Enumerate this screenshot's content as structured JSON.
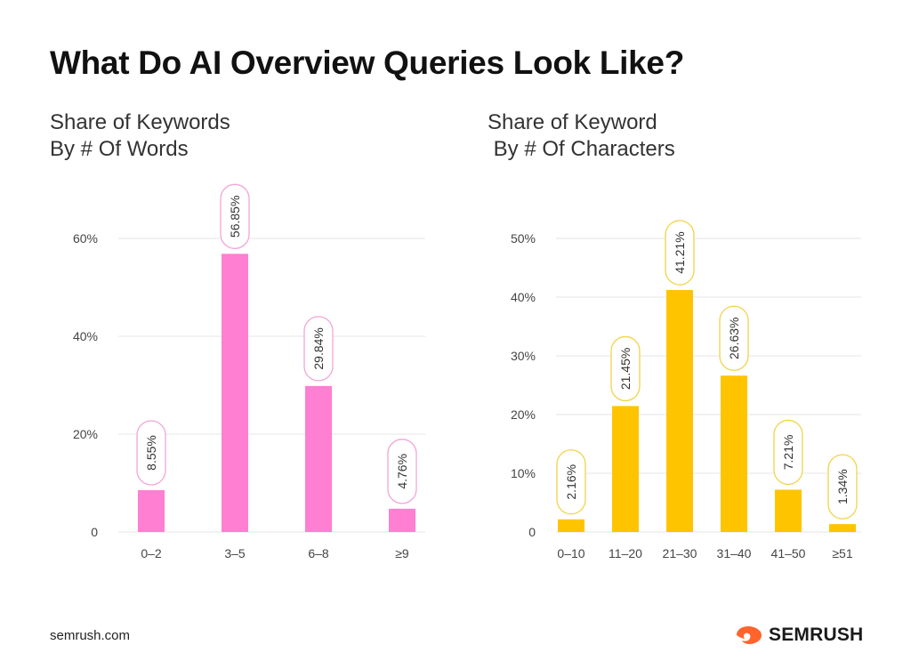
{
  "title": "What Do AI Overview Queries Look Like?",
  "footer": {
    "url": "semrush.com",
    "brand": "SEMRUSH",
    "brand_icon": "semrush-fire-icon",
    "brand_color": "#ff642d"
  },
  "chart_data": [
    {
      "type": "bar",
      "title": "Share of Keywords\nBy # Of Words",
      "categories": [
        "0–2",
        "3–5",
        "6–8",
        "≥9"
      ],
      "values": [
        8.55,
        56.85,
        29.84,
        4.76
      ],
      "data_labels": [
        "8.55%",
        "56.85%",
        "29.84%",
        "4.76%"
      ],
      "yticks": [
        "0",
        "20%",
        "40%",
        "60%"
      ],
      "ytick_values": [
        0,
        20,
        40,
        60
      ],
      "ylim": [
        0,
        60
      ],
      "color": "#ff7fd2",
      "label_border": "#f0a6d8",
      "grid": true
    },
    {
      "type": "bar",
      "title": "Share of Keyword\n By # Of Characters",
      "categories": [
        "0–10",
        "11–20",
        "21–30",
        "31–40",
        "41–50",
        "≥51"
      ],
      "values": [
        2.16,
        21.45,
        41.21,
        26.63,
        7.21,
        1.34
      ],
      "data_labels": [
        "2.16%",
        "21.45%",
        "41.21%",
        "26.63%",
        "7.21%",
        "1.34%"
      ],
      "yticks": [
        "0",
        "10%",
        "20%",
        "30%",
        "40%",
        "50%"
      ],
      "ytick_values": [
        0,
        10,
        20,
        30,
        40,
        50
      ],
      "ylim": [
        0,
        50
      ],
      "color": "#ffc400",
      "label_border": "#f2d34a",
      "grid": true
    }
  ]
}
